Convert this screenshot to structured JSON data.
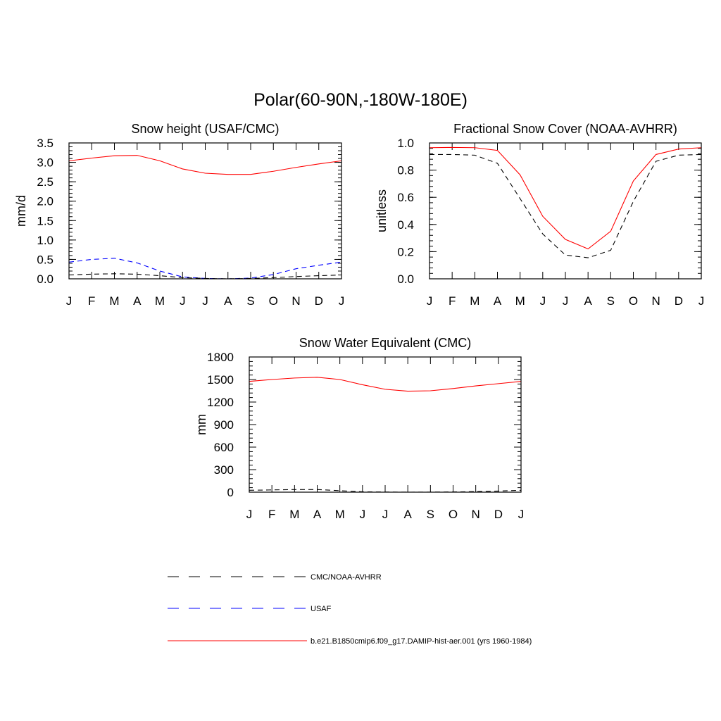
{
  "main_title": "Polar(60-90N,-180W-180E)",
  "months": [
    "J",
    "F",
    "M",
    "A",
    "M",
    "J",
    "J",
    "A",
    "S",
    "O",
    "N",
    "D",
    "J"
  ],
  "chart_data": [
    {
      "type": "line",
      "title": "Snow height (USAF/CMC)",
      "ylabel": "mm/d",
      "xlabel": "",
      "ylim": [
        0,
        3.5
      ],
      "yticks": [
        0,
        0.5,
        1.0,
        1.5,
        2.0,
        2.5,
        3.0,
        3.5
      ],
      "ytick_labels": [
        "0.0",
        "0.5",
        "1.0",
        "1.5",
        "2.0",
        "2.5",
        "3.0",
        "3.5"
      ],
      "series": [
        {
          "name": "b.e21.B1850cmip6.f09_g17.DAMIP-hist-aer.001 (yrs 1960-1984)",
          "color": "#ff0000",
          "dash": "solid",
          "values": [
            3.04,
            3.11,
            3.17,
            3.18,
            3.04,
            2.83,
            2.72,
            2.69,
            2.69,
            2.77,
            2.87,
            2.96,
            3.04
          ]
        },
        {
          "name": "USAF",
          "color": "#0000ff",
          "dash": "dashed",
          "values": [
            0.43,
            0.5,
            0.53,
            0.41,
            0.2,
            0.05,
            0.01,
            0.0,
            0.02,
            0.11,
            0.26,
            0.35,
            0.43
          ]
        },
        {
          "name": "CMC/NOAA-AVHRR",
          "color": "#000000",
          "dash": "dashed",
          "values": [
            0.1,
            0.12,
            0.13,
            0.12,
            0.08,
            0.03,
            0.01,
            0.0,
            0.01,
            0.03,
            0.06,
            0.08,
            0.1
          ]
        }
      ]
    },
    {
      "type": "line",
      "title": "Fractional Snow Cover (NOAA-AVHRR)",
      "ylabel": "unitless",
      "xlabel": "",
      "ylim": [
        0,
        1.0
      ],
      "yticks": [
        0,
        0.2,
        0.4,
        0.6,
        0.8,
        1.0
      ],
      "ytick_labels": [
        "0.0",
        "0.2",
        "0.4",
        "0.6",
        "0.8",
        "1.0"
      ],
      "series": [
        {
          "name": "b.e21.B1850cmip6.f09_g17.DAMIP-hist-aer.001 (yrs 1960-1984)",
          "color": "#ff0000",
          "dash": "solid",
          "values": [
            0.965,
            0.967,
            0.965,
            0.945,
            0.765,
            0.46,
            0.29,
            0.22,
            0.35,
            0.72,
            0.915,
            0.955,
            0.965
          ]
        },
        {
          "name": "CMC/NOAA-AVHRR",
          "color": "#000000",
          "dash": "dashed",
          "values": [
            0.915,
            0.915,
            0.91,
            0.85,
            0.59,
            0.33,
            0.175,
            0.155,
            0.21,
            0.57,
            0.865,
            0.91,
            0.915
          ]
        }
      ]
    },
    {
      "type": "line",
      "title": "Snow Water Equivalent (CMC)",
      "ylabel": "mm",
      "xlabel": "",
      "ylim": [
        0,
        1800
      ],
      "yticks": [
        0,
        300,
        600,
        900,
        1200,
        1500,
        1800
      ],
      "ytick_labels": [
        "0",
        "300",
        "600",
        "900",
        "1200",
        "1500",
        "1800"
      ],
      "series": [
        {
          "name": "b.e21.B1850cmip6.f09_g17.DAMIP-hist-aer.001 (yrs 1960-1984)",
          "color": "#ff0000",
          "dash": "solid",
          "values": [
            1475,
            1500,
            1520,
            1530,
            1500,
            1430,
            1370,
            1345,
            1350,
            1380,
            1415,
            1445,
            1475
          ]
        },
        {
          "name": "CMC/NOAA-AVHRR",
          "color": "#000000",
          "dash": "dashed",
          "values": [
            25,
            30,
            35,
            35,
            20,
            5,
            2,
            0,
            1,
            3,
            8,
            15,
            25
          ]
        }
      ]
    }
  ],
  "legend": [
    {
      "label": "CMC/NOAA-AVHRR",
      "color": "#000000",
      "dash": "dashed"
    },
    {
      "label": "USAF",
      "color": "#0000ff",
      "dash": "dashed"
    },
    {
      "label": "b.e21.B1850cmip6.f09_g17.DAMIP-hist-aer.001 (yrs 1960-1984)",
      "color": "#ff0000",
      "dash": "solid"
    }
  ]
}
